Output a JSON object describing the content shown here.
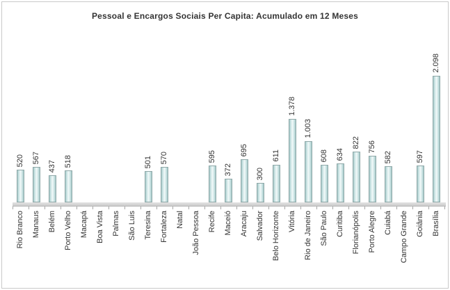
{
  "chart_data": {
    "type": "bar",
    "title": "Pessoal e Encargos Sociais Per Capita: Acumulado em 12 Meses",
    "categories": [
      "Rio Branco",
      "Manaus",
      "Belém",
      "Porto Velho",
      "Macapá",
      "Boa Vista",
      "Palmas",
      "São Luis",
      "Teresina",
      "Fortaleza",
      "Natal",
      "João Pessoa",
      "Recife",
      "Maceió",
      "Aracaju",
      "Salvador",
      "Belo Horizonte",
      "Vitória",
      "Rio de Janeiro",
      "São Paulo",
      "Curitiba",
      "Florianópolis",
      "Porto Alegre",
      "Cuiabá",
      "Campo Grande",
      "Goiânia",
      "Brasília"
    ],
    "values": [
      520,
      567,
      437,
      518,
      null,
      null,
      null,
      null,
      501,
      570,
      null,
      null,
      595,
      372,
      695,
      300,
      611,
      1378,
      1003,
      608,
      634,
      822,
      756,
      582,
      null,
      597,
      2098
    ],
    "value_labels": [
      "520",
      "567",
      "437",
      "518",
      null,
      null,
      null,
      null,
      "501",
      "570",
      null,
      null,
      "595",
      "372",
      "695",
      "300",
      "611",
      "1.378",
      "1.003",
      "608",
      "634",
      "822",
      "756",
      "582",
      null,
      "597",
      "2.098"
    ],
    "xlabel": "",
    "ylabel": "",
    "ylim": [
      0,
      2098
    ],
    "grid": false,
    "legend": "none",
    "bar_border_color": "#8fa8a8",
    "bar_edge_color": "#a3c8c8",
    "bar_center_color": "#f2f9f9",
    "axis_color": "#cccccc",
    "label_color": "#333333",
    "title_color": "#333333"
  }
}
